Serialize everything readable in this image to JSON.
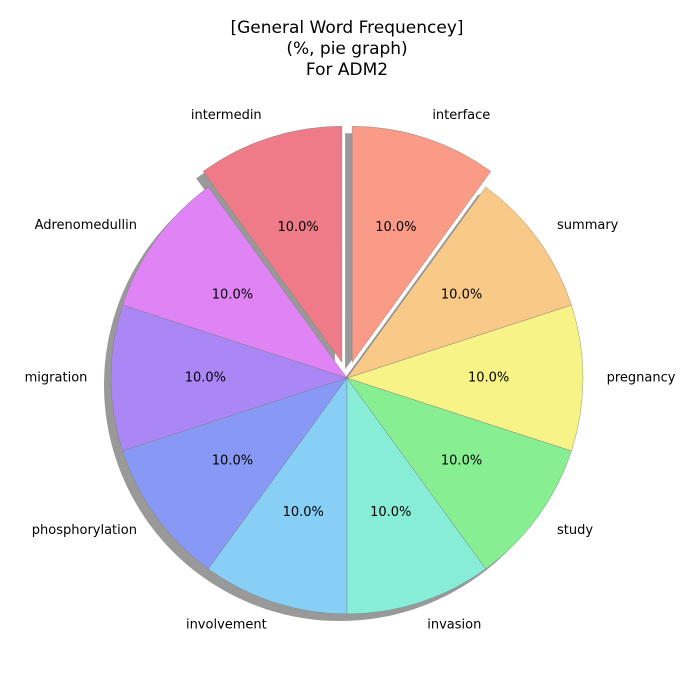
{
  "chart_data": {
    "type": "pie",
    "title": [
      "[General Word Frequencey]",
      "(%, pie graph)",
      "For ADM2"
    ],
    "start_angle_deg": 90,
    "direction": "counterclockwise",
    "shadow": true,
    "slices": [
      {
        "label": "intermedin",
        "value": 10.0,
        "pct_label": "10.0%",
        "color": "#f07b88",
        "exploded": true
      },
      {
        "label": "Adrenomedullin",
        "value": 10.0,
        "pct_label": "10.0%",
        "color": "#df83f5",
        "exploded": false
      },
      {
        "label": "migration",
        "value": 10.0,
        "pct_label": "10.0%",
        "color": "#ab87f5",
        "exploded": false
      },
      {
        "label": "phosphorylation",
        "value": 10.0,
        "pct_label": "10.0%",
        "color": "#8799f5",
        "exploded": false
      },
      {
        "label": "involvement",
        "value": 10.0,
        "pct_label": "10.0%",
        "color": "#87cff5",
        "exploded": false
      },
      {
        "label": "invasion",
        "value": 10.0,
        "pct_label": "10.0%",
        "color": "#87edd6",
        "exploded": false
      },
      {
        "label": "study",
        "value": 10.0,
        "pct_label": "10.0%",
        "color": "#87ef91",
        "exploded": false
      },
      {
        "label": "pregnancy",
        "value": 10.0,
        "pct_label": "10.0%",
        "color": "#f8f387",
        "exploded": false
      },
      {
        "label": "summary",
        "value": 10.0,
        "pct_label": "10.0%",
        "color": "#f8c987",
        "exploded": false
      },
      {
        "label": "interface",
        "value": 10.0,
        "pct_label": "10.0%",
        "color": "#f99b87",
        "exploded": true
      }
    ]
  }
}
